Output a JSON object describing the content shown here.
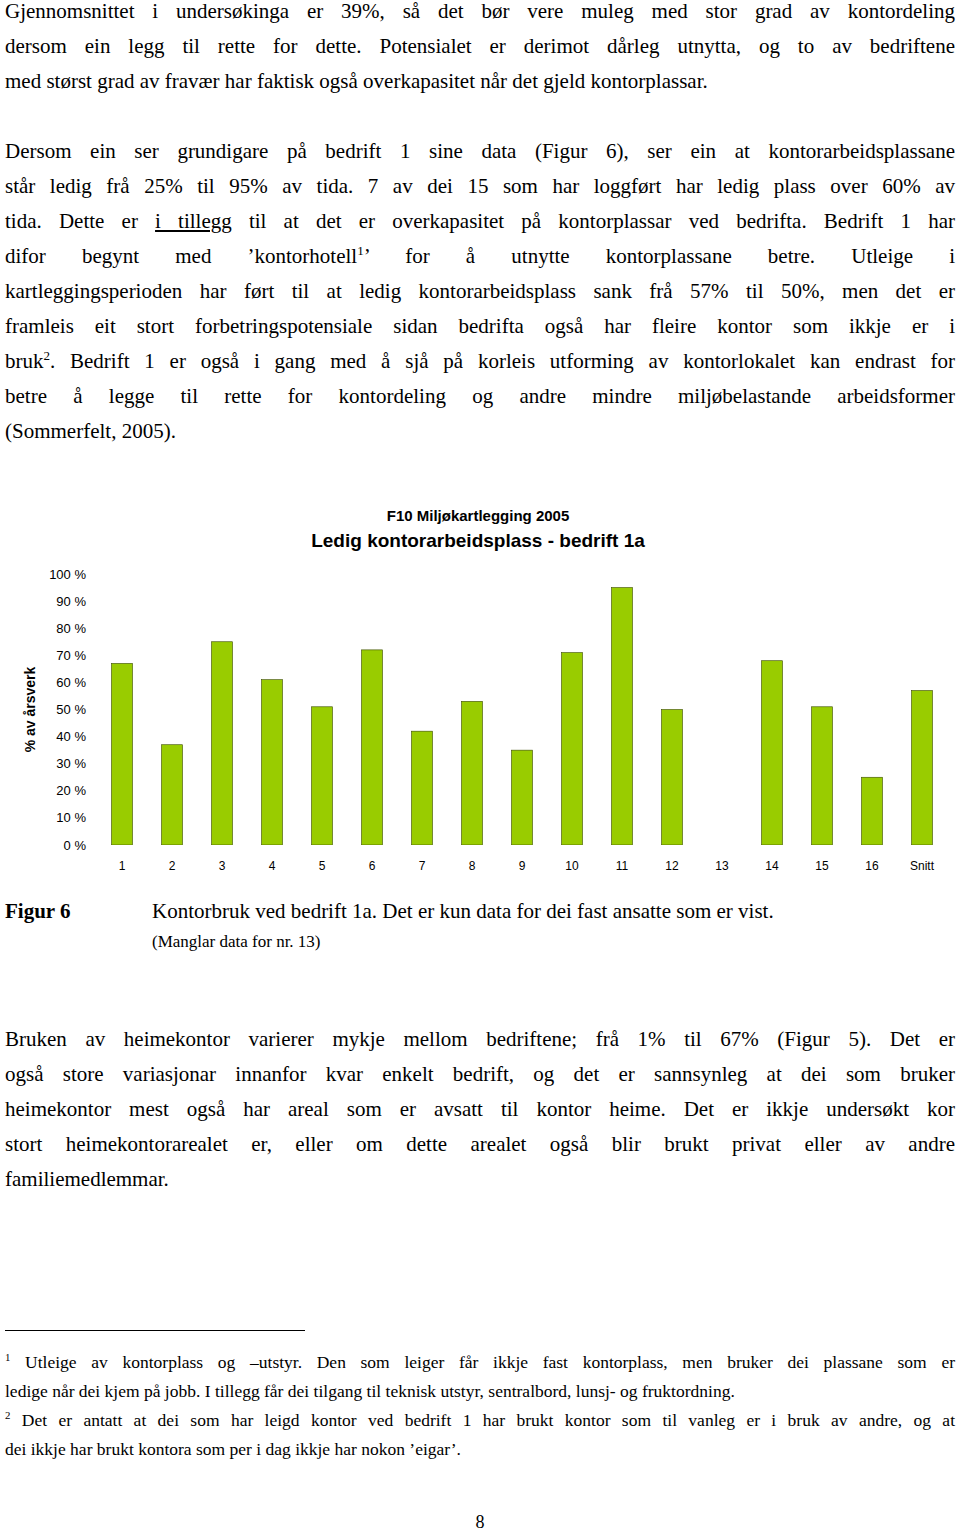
{
  "paragraphs": [
    {
      "lines": [
        [
          "Gjennomsnittet i undersøkinga er 39%, så det bør vere muleg med stor grad av kontordeling"
        ],
        [
          "dersom ein legg til rette for dette. Potensialet er derimot dårleg utnytta, og to av bedriftene"
        ],
        [
          "med størst grad av fravær har faktisk også overkapasitet når det gjeld kontorplassar."
        ]
      ]
    },
    {
      "lines": [
        [
          "Dersom ein ser grundigare på bedrift 1 sine data (Figur 6), ser ein at kontorarbeidsplassane"
        ],
        [
          "står ledig frå 25% til 95% av tida. 7 av dei 15 som har loggført har ledig plass over 60% av"
        ],
        [
          "tida. Dette er ",
          {
            "text": "i tillegg",
            "style": "underline"
          },
          " til at det er overkapasitet på kontorplassar ved bedrifta. Bedrift 1 har"
        ],
        [
          "difor begynt med ’kontorhotell",
          {
            "text": "1",
            "style": "sup"
          },
          "’ for å utnytte kontorplassane betre. Utleige i"
        ],
        [
          "kartleggingsperioden har ført til at ledig kontorarbeidsplass sank frå 57% til 50%, men det er"
        ],
        [
          "framleis eit stort forbetringspotensiale sidan bedrifta også har fleire kontor som ikkje er i"
        ],
        [
          "bruk",
          {
            "text": "2",
            "style": "sup"
          },
          ". Bedrift 1 er også i gang med å sjå på korleis utforming av kontorlokalet kan endrast for"
        ],
        [
          "betre å legge til rette for kontordeling og andre mindre miljøbelastande arbeidsformer"
        ],
        [
          "(Sommerfelt, 2005)."
        ]
      ]
    },
    {
      "lines": [
        [
          "Bruken av heimekontor varierer mykje mellom bedriftene; frå 1% til 67% (Figur 5). Det er"
        ],
        [
          "også store variasjonar innanfor kvar enkelt bedrift, og det er sannsynleg at dei som bruker"
        ],
        [
          "heimekontor mest også har areal som er avsatt til kontor heime. Det er ikkje undersøkt kor"
        ],
        [
          "stort heimekontorarealet er, eller om dette arealet også blir brukt privat eller av andre"
        ],
        [
          "familiemedlemmar."
        ]
      ]
    }
  ],
  "chart_data": {
    "type": "bar",
    "supertitle": "F10 Miljøkartlegging 2005",
    "title": "Ledig kontorarbeidsplass - bedrift 1a",
    "y_label": "% av årsverk",
    "categories": [
      "1",
      "2",
      "3",
      "4",
      "5",
      "6",
      "7",
      "8",
      "9",
      "10",
      "11",
      "12",
      "13",
      "14",
      "15",
      "16",
      "Snitt"
    ],
    "values": [
      67,
      37,
      75,
      61,
      51,
      72,
      42,
      53,
      35,
      71,
      95,
      50,
      null,
      68,
      51,
      25,
      57
    ],
    "color": "#99cc00",
    "ylim": [
      0,
      100
    ],
    "yticks": [
      {
        "value": 0,
        "label": "0 %"
      },
      {
        "value": 10,
        "label": "10 %"
      },
      {
        "value": 20,
        "label": "20 %"
      },
      {
        "value": 30,
        "label": "30 %"
      },
      {
        "value": 40,
        "label": "40 %"
      },
      {
        "value": 50,
        "label": "50 %"
      },
      {
        "value": 60,
        "label": "60 %"
      },
      {
        "value": 70,
        "label": "70 %"
      },
      {
        "value": 80,
        "label": "80 %"
      },
      {
        "value": 90,
        "label": "90 %"
      },
      {
        "value": 100,
        "label": "100 %"
      }
    ],
    "grid": false
  },
  "caption": {
    "label": "Figur 6",
    "text": "Kontorbruk ved bedrift 1a. Det er kun data for dei fast ansatte som er vist.",
    "note": "(Manglar data for nr. 13)"
  },
  "footnotes": [
    {
      "lines": [
        [
          {
            "text": "1",
            "style": "sup"
          },
          " Utleige av kontorplass og –utstyr. Den som leiger får ikkje fast kontorplass, men bruker dei plassane som er"
        ],
        [
          "ledige når dei kjem på jobb. I tillegg får dei tilgang til teknisk utstyr, sentralbord, lunsj- og fruktordning."
        ]
      ]
    },
    {
      "lines": [
        [
          {
            "text": "2",
            "style": "sup"
          },
          " Det er antatt at dei som har leigd kontor ved bedrift 1 har brukt kontor som til vanleg er i bruk av andre, og at"
        ],
        [
          "dei ikkje har brukt kontora som per i dag ikkje har nokon ’eigar’."
        ]
      ]
    }
  ],
  "page_number": "8"
}
